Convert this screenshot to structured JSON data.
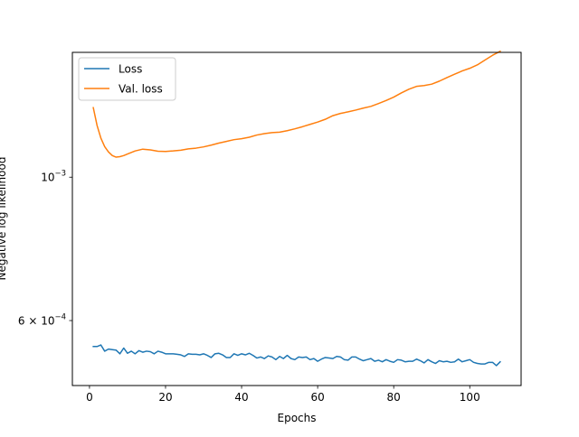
{
  "chart_data": {
    "type": "line",
    "title": "",
    "xlabel": "Epochs",
    "ylabel": "Negative log likelihood",
    "yscale": "log",
    "xlim": [
      -4.5,
      113.5
    ],
    "ylim": [
      0.000476,
      0.00156
    ],
    "grid": false,
    "legend_position": "top-left",
    "xticks": [
      0,
      20,
      40,
      60,
      80,
      100
    ],
    "xtick_labels": [
      "0",
      "20",
      "40",
      "60",
      "80",
      "100"
    ],
    "yticks": [
      0.001,
      0.0006
    ],
    "ytick_labels": [
      {
        "base": "10",
        "sup": "−3"
      },
      {
        "base": "6 × 10",
        "sup": "−4"
      }
    ],
    "series": [
      {
        "name": "Loss",
        "color": "#1f77b4",
        "x": [
          1,
          2,
          3,
          4,
          5,
          6,
          7,
          8,
          9,
          10,
          11,
          12,
          13,
          14,
          15,
          16,
          17,
          18,
          19,
          20,
          21,
          22,
          23,
          24,
          25,
          26,
          27,
          28,
          29,
          30,
          31,
          32,
          33,
          34,
          35,
          36,
          37,
          38,
          39,
          40,
          41,
          42,
          43,
          44,
          45,
          46,
          47,
          48,
          49,
          50,
          51,
          52,
          53,
          54,
          55,
          56,
          57,
          58,
          59,
          60,
          61,
          62,
          63,
          64,
          65,
          66,
          67,
          68,
          69,
          70,
          71,
          72,
          73,
          74,
          75,
          76,
          77,
          78,
          79,
          80,
          81,
          82,
          83,
          84,
          85,
          86,
          87,
          88,
          89,
          90,
          91,
          92,
          93,
          94,
          95,
          96,
          97,
          98,
          99,
          100,
          101,
          102,
          103,
          104,
          105,
          106,
          107,
          108
        ],
        "y": [
          0.000547,
          0.000547,
          0.00055,
          0.000538,
          0.000542,
          0.000541,
          0.00054,
          0.000533,
          0.000544,
          0.000534,
          0.000538,
          0.000533,
          0.000539,
          0.000536,
          0.000538,
          0.000537,
          0.000533,
          0.000538,
          0.000536,
          0.000533,
          0.000533,
          0.000533,
          0.000532,
          0.000531,
          0.000528,
          0.000533,
          0.000532,
          0.000532,
          0.000531,
          0.000533,
          0.00053,
          0.000526,
          0.000533,
          0.000534,
          0.000531,
          0.000526,
          0.000526,
          0.000533,
          0.00053,
          0.000533,
          0.000531,
          0.000534,
          0.00053,
          0.000525,
          0.000527,
          0.000524,
          0.000529,
          0.000527,
          0.000522,
          0.000528,
          0.000524,
          0.00053,
          0.000524,
          0.000522,
          0.000527,
          0.000526,
          0.000527,
          0.000522,
          0.000524,
          0.000519,
          0.000523,
          0.000526,
          0.000525,
          0.000524,
          0.000528,
          0.000527,
          0.000522,
          0.000521,
          0.000527,
          0.000527,
          0.000523,
          0.00052,
          0.000522,
          0.000524,
          0.000519,
          0.000521,
          0.000518,
          0.000522,
          0.000519,
          0.000517,
          0.000522,
          0.000521,
          0.000518,
          0.000519,
          0.000519,
          0.000523,
          0.00052,
          0.000516,
          0.000522,
          0.000518,
          0.000515,
          0.00052,
          0.000518,
          0.000519,
          0.000517,
          0.000518,
          0.000523,
          0.000518,
          0.00052,
          0.000522,
          0.000517,
          0.000515,
          0.000514,
          0.000514,
          0.000517,
          0.000517,
          0.000511,
          0.000518
        ]
      },
      {
        "name": "Val. loss",
        "color": "#ff7f0e",
        "x": [
          1,
          2,
          3,
          4,
          5,
          6,
          7,
          8,
          9,
          10,
          12,
          14,
          16,
          18,
          20,
          22,
          24,
          26,
          28,
          30,
          32,
          34,
          36,
          38,
          40,
          42,
          44,
          46,
          48,
          50,
          52,
          54,
          56,
          58,
          60,
          62,
          64,
          66,
          68,
          70,
          72,
          74,
          76,
          78,
          80,
          82,
          84,
          86,
          88,
          90,
          92,
          94,
          96,
          98,
          100,
          102,
          104,
          106,
          108
        ],
        "y": [
          0.001281,
          0.001202,
          0.001149,
          0.001115,
          0.001094,
          0.00108,
          0.001074,
          0.001076,
          0.00108,
          0.001086,
          0.001098,
          0.001105,
          0.001102,
          0.001097,
          0.001096,
          0.001098,
          0.001101,
          0.001106,
          0.001109,
          0.001114,
          0.001121,
          0.001129,
          0.001136,
          0.001143,
          0.001147,
          0.001153,
          0.001162,
          0.001168,
          0.001172,
          0.001174,
          0.00118,
          0.001188,
          0.001197,
          0.001207,
          0.001217,
          0.001229,
          0.001245,
          0.001255,
          0.001262,
          0.00127,
          0.001279,
          0.001287,
          0.0013,
          0.001314,
          0.00133,
          0.00135,
          0.001368,
          0.001382,
          0.001386,
          0.001393,
          0.001408,
          0.001426,
          0.001443,
          0.00146,
          0.001474,
          0.001492,
          0.001518,
          0.001544,
          0.001566
        ]
      }
    ]
  }
}
